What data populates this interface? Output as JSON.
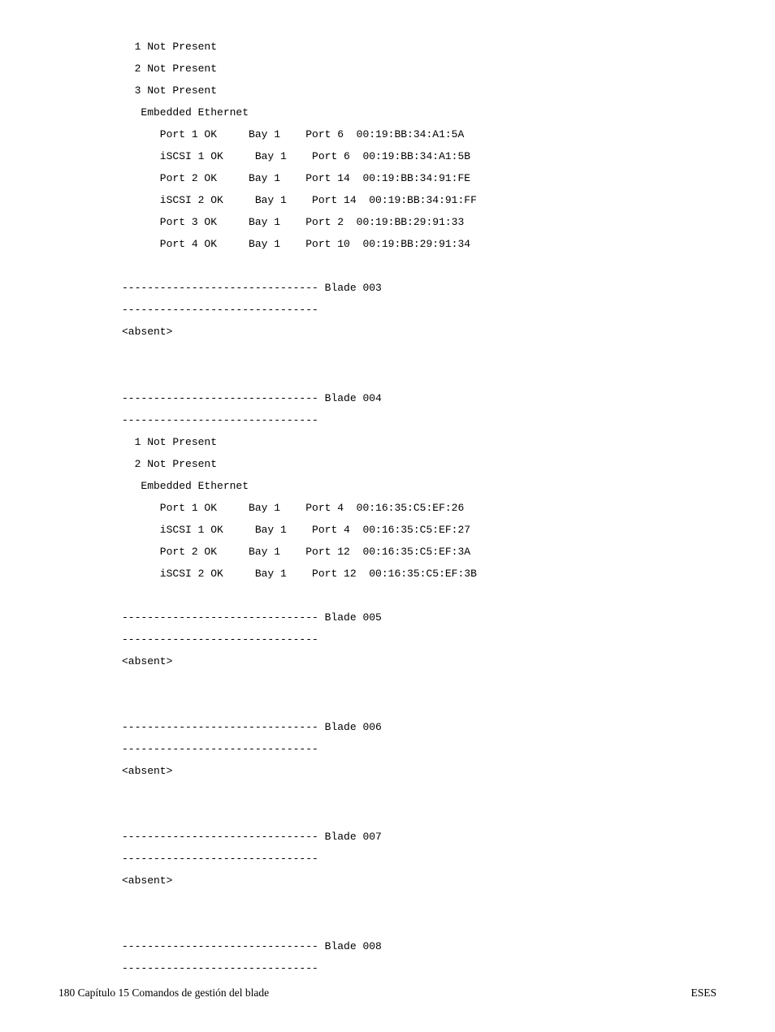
{
  "terminal_text": "  1 Not Present\n  2 Not Present\n  3 Not Present\n   Embedded Ethernet\n      Port 1 OK     Bay 1    Port 6  00:19:BB:34:A1:5A\n      iSCSI 1 OK     Bay 1    Port 6  00:19:BB:34:A1:5B\n      Port 2 OK     Bay 1    Port 14  00:19:BB:34:91:FE\n      iSCSI 2 OK     Bay 1    Port 14  00:19:BB:34:91:FF\n      Port 3 OK     Bay 1    Port 2  00:19:BB:29:91:33\n      Port 4 OK     Bay 1    Port 10  00:19:BB:29:91:34\n\n------------------------------- Blade 003\n-------------------------------\n<absent>\n\n\n------------------------------- Blade 004\n-------------------------------\n  1 Not Present\n  2 Not Present\n   Embedded Ethernet\n      Port 1 OK     Bay 1    Port 4  00:16:35:C5:EF:26\n      iSCSI 1 OK     Bay 1    Port 4  00:16:35:C5:EF:27\n      Port 2 OK     Bay 1    Port 12  00:16:35:C5:EF:3A\n      iSCSI 2 OK     Bay 1    Port 12  00:16:35:C5:EF:3B\n\n------------------------------- Blade 005\n-------------------------------\n<absent>\n\n\n------------------------------- Blade 006\n-------------------------------\n<absent>\n\n\n------------------------------- Blade 007\n-------------------------------\n<absent>\n\n\n------------------------------- Blade 008\n-------------------------------",
  "footer": {
    "left": "180  Capítulo 15   Comandos de gestión del blade",
    "right": "ESES"
  }
}
